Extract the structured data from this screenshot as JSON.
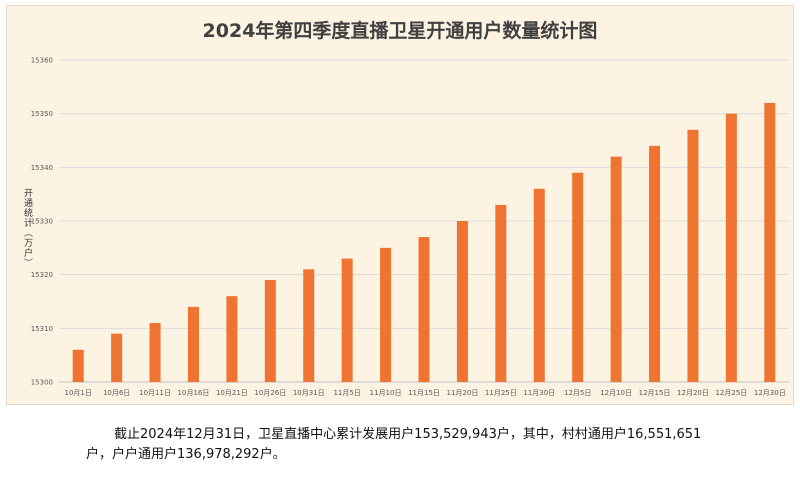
{
  "chart_data": {
    "type": "bar",
    "title": "2024年第四季度直播卫星开通用户数量统计图",
    "ylabel": "开通统计（万户）",
    "xlabel": "",
    "ylim": [
      15300,
      15360
    ],
    "yticks": [
      15300,
      15310,
      15320,
      15330,
      15340,
      15350,
      15360
    ],
    "grid": true,
    "legend": "none",
    "bar_color": "#ed7531",
    "categories": [
      "10月1日",
      "10月6日",
      "10月11日",
      "10月16日",
      "10月21日",
      "10月26日",
      "10月31日",
      "11月5日",
      "11月10日",
      "11月15日",
      "11月20日",
      "11月25日",
      "11月30日",
      "12月5日",
      "12月10日",
      "12月15日",
      "12月20日",
      "12月25日",
      "12月30日"
    ],
    "values": [
      15306,
      15309,
      15311,
      15314,
      15316,
      15319,
      15321,
      15323,
      15325,
      15327,
      15330,
      15333,
      15336,
      15339,
      15342,
      15344,
      15347,
      15350,
      15352
    ]
  },
  "caption": "截止2024年12月31日，卫星直播中心累计发展用户153,529,943户，其中，村村通用户16,551,651户，户户通用户136,978,292户。"
}
